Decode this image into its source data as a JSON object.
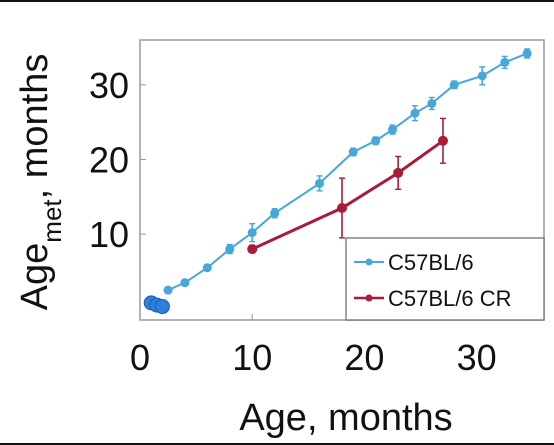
{
  "chart_data": {
    "type": "line",
    "xlabel": "Age, months",
    "ylabel_main": "Age",
    "ylabel_sub": "met",
    "ylabel_rest": ", months",
    "xlim": [
      0,
      36
    ],
    "ylim": [
      -1.5,
      36
    ],
    "xticks": [
      0,
      10,
      20,
      30
    ],
    "yticks": [
      10,
      20,
      30
    ],
    "grid": false,
    "legend_position": "bottom-right",
    "series": [
      {
        "name": "C57BL/6",
        "color": "#47a6da",
        "x": [
          2.5,
          4,
          6,
          8,
          10,
          12,
          16,
          19,
          21,
          22.5,
          24.5,
          26,
          28,
          30.5,
          32.5,
          34.5
        ],
        "y": [
          2.5,
          3.5,
          5.5,
          8,
          10.2,
          12.8,
          16.8,
          21,
          22.5,
          24,
          26.2,
          27.5,
          30,
          31.2,
          33,
          34.2
        ],
        "err": [
          0.4,
          0.4,
          0.4,
          0.6,
          1.2,
          0.6,
          1,
          0.5,
          0.5,
          0.6,
          1,
          0.8,
          0.5,
          1.2,
          0.8,
          0.6
        ]
      },
      {
        "name": "C57BL/6 CR",
        "color": "#a81c3a",
        "x": [
          10,
          18,
          23,
          27
        ],
        "y": [
          8,
          13.5,
          18.2,
          22.5
        ],
        "err": [
          0.5,
          4,
          2.2,
          3
        ]
      }
    ],
    "early_points": {
      "color": "#2f7fdb",
      "x": [
        1,
        1.5,
        2
      ],
      "y": [
        0.8,
        0.5,
        0.3
      ]
    }
  }
}
